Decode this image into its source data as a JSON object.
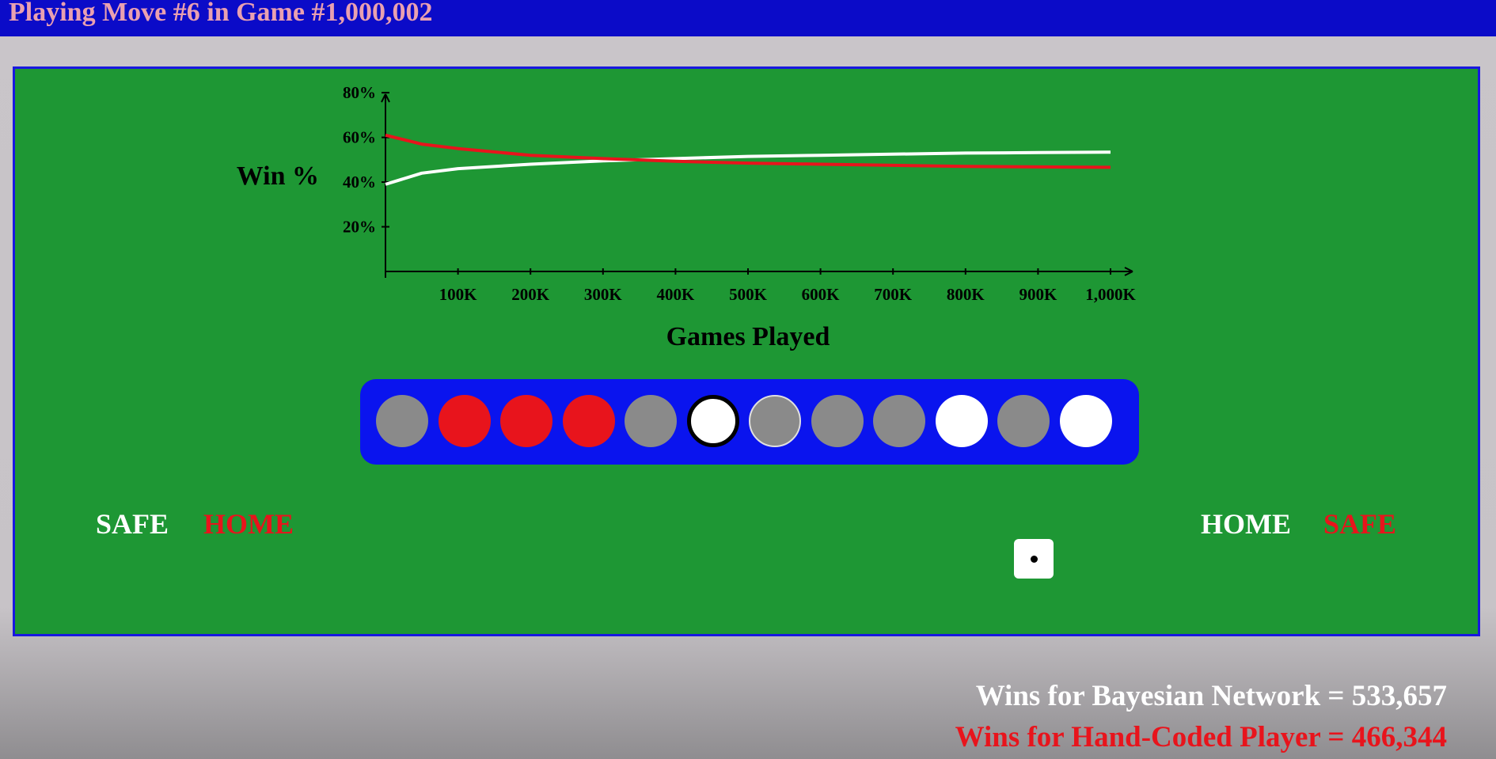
{
  "header": {
    "title": "Playing Move #6 in Game #1,000,002"
  },
  "chart_data": {
    "type": "line",
    "xlabel": "Games Played",
    "ylabel": "Win %",
    "x_ticks": [
      "100K",
      "200K",
      "300K",
      "400K",
      "500K",
      "600K",
      "700K",
      "800K",
      "900K",
      "1,000K"
    ],
    "y_ticks": [
      "20%",
      "40%",
      "60%",
      "80%"
    ],
    "xlim": [
      0,
      1000000
    ],
    "ylim": [
      0,
      85
    ],
    "x": [
      0,
      50000,
      100000,
      200000,
      300000,
      400000,
      500000,
      600000,
      700000,
      800000,
      900000,
      1000000
    ],
    "series": [
      {
        "color": "#ffffff",
        "values": [
          39,
          44,
          46,
          48,
          49.5,
          50.5,
          51.5,
          52,
          52.5,
          53,
          53.2,
          53.4
        ]
      },
      {
        "color": "#e8141c",
        "values": [
          61,
          57,
          55,
          52,
          50.5,
          49.3,
          48.5,
          48,
          47.5,
          47,
          46.8,
          46.6
        ]
      }
    ],
    "grid": false,
    "legend": "none"
  },
  "board": {
    "holes": [
      "gray",
      "red",
      "red",
      "red",
      "gray",
      "white-selected",
      "gray-outlined",
      "gray",
      "gray",
      "white",
      "gray",
      "white"
    ],
    "left_safe": "SAFE",
    "left_home": "HOME",
    "right_home": "HOME",
    "right_safe": "SAFE",
    "die_value": 1
  },
  "colors": {
    "white_player": "#ffffff",
    "red_player": "#e8141c",
    "board": "#1e9734",
    "track": "#0a14ee",
    "empty_hole": "#8a8a8a"
  },
  "scores": {
    "bayesian": "Wins for Bayesian Network = 533,657",
    "hand_coded": "Wins for Hand-Coded Player = 466,344"
  }
}
